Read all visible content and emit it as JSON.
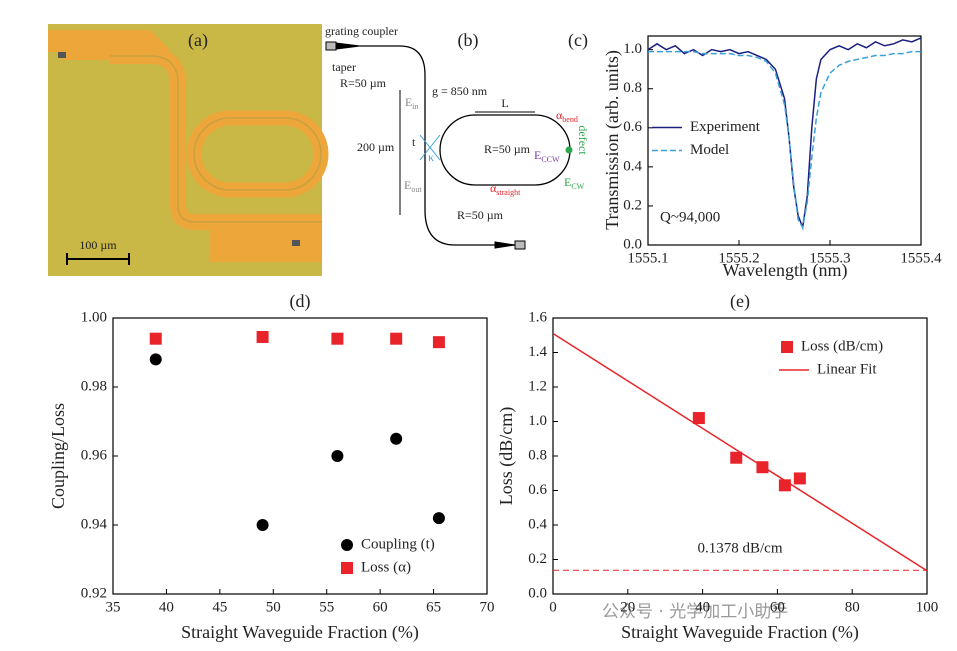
{
  "chart_data": [
    {
      "type": "line",
      "panel_label": "(c)",
      "xlabel": "Wavelength (nm)",
      "ylabel": "Transmission (arb. units)",
      "x": [
        1555.1,
        1555.11,
        1555.12,
        1555.13,
        1555.14,
        1555.15,
        1555.16,
        1555.17,
        1555.18,
        1555.19,
        1555.2,
        1555.21,
        1555.22,
        1555.23,
        1555.24,
        1555.25,
        1555.255,
        1555.26,
        1555.265,
        1555.27,
        1555.275,
        1555.28,
        1555.285,
        1555.29,
        1555.3,
        1555.31,
        1555.32,
        1555.33,
        1555.34,
        1555.35,
        1555.36,
        1555.37,
        1555.38,
        1555.39,
        1555.4
      ],
      "series": [
        {
          "name": "Experiment",
          "color": "#1a1f80",
          "marker": "none",
          "dash": false,
          "values": [
            1.0,
            1.03,
            1.0,
            1.02,
            0.98,
            1.0,
            0.97,
            1.0,
            0.99,
            1.0,
            0.98,
            0.99,
            0.97,
            0.95,
            0.9,
            0.75,
            0.55,
            0.3,
            0.15,
            0.09,
            0.25,
            0.6,
            0.85,
            0.95,
            1.0,
            1.02,
            1.0,
            1.03,
            1.01,
            1.04,
            1.02,
            1.03,
            1.05,
            1.04,
            1.06
          ]
        },
        {
          "name": "Model",
          "color": "#3aa0d8",
          "marker": "none",
          "dash": true,
          "values": [
            0.99,
            0.99,
            0.99,
            0.99,
            0.99,
            0.99,
            0.98,
            0.98,
            0.98,
            0.98,
            0.97,
            0.97,
            0.96,
            0.94,
            0.88,
            0.72,
            0.55,
            0.32,
            0.13,
            0.09,
            0.22,
            0.45,
            0.65,
            0.78,
            0.88,
            0.92,
            0.94,
            0.95,
            0.96,
            0.97,
            0.97,
            0.98,
            0.98,
            0.99,
            0.99
          ]
        }
      ],
      "xlim": [
        1555.1,
        1555.4
      ],
      "xticks": [
        1555.1,
        1555.2,
        1555.3,
        1555.4
      ],
      "ylim": [
        0,
        1.07
      ],
      "yticks": [
        {
          "value": 0,
          "label": "0.0"
        },
        0.2,
        0.4,
        0.6,
        0.8,
        {
          "value": 1,
          "label": "1.0"
        }
      ],
      "legend": "center-left",
      "annotation": "Q~94,000"
    },
    {
      "type": "scatter",
      "panel_label": "(d)",
      "xlabel": "Straight Waveguide Fraction (%)",
      "ylabel": "Coupling/Loss",
      "series": [
        {
          "name": "Coupling (t)",
          "color": "#000000",
          "marker": "circle",
          "x": [
            39,
            49,
            56,
            61.5,
            65.5
          ],
          "values": [
            0.988,
            0.94,
            0.96,
            0.965,
            0.942
          ]
        },
        {
          "name": "Loss (α)",
          "color": "#e8242a",
          "marker": "square",
          "x": [
            39,
            49,
            56,
            61.5,
            65.5
          ],
          "values": [
            0.994,
            0.9945,
            0.994,
            0.994,
            0.993
          ]
        }
      ],
      "xlim": [
        35,
        70
      ],
      "xticks": [
        35,
        40,
        45,
        50,
        55,
        60,
        65,
        70
      ],
      "ylim": [
        0.92,
        1.0
      ],
      "yticks": [
        0.92,
        0.94,
        0.96,
        0.98,
        {
          "value": 1,
          "label": "1.00"
        }
      ],
      "legend": "lower-right"
    },
    {
      "type": "scatter",
      "panel_label": "(e)",
      "xlabel": "Straight Waveguide Fraction (%)",
      "ylabel": "Loss (dB/cm)",
      "series": [
        {
          "name": "Loss (dB/cm)",
          "color": "#e8242a",
          "marker": "square",
          "x": [
            39,
            49,
            56,
            62,
            66
          ],
          "values": [
            1.02,
            0.79,
            0.735,
            0.63,
            0.67
          ]
        },
        {
          "name": "Linear Fit",
          "color": "#e8242a",
          "marker": "none",
          "dash": false,
          "x": [
            0,
            100
          ],
          "values": [
            1.51,
            0.135
          ]
        }
      ],
      "xlim": [
        0,
        100
      ],
      "xticks": [
        0,
        20,
        40,
        60,
        80,
        100
      ],
      "ylim": [
        0,
        1.6
      ],
      "yticks": [
        {
          "value": 0,
          "label": "0.0"
        },
        0.2,
        0.4,
        0.6,
        0.8,
        {
          "value": 1,
          "label": "1.0"
        },
        {
          "value": 1.2,
          "label": "1.2"
        },
        1.4,
        1.6
      ],
      "legend": "upper-right",
      "reference_line": 0.1378,
      "annotation": "0.1378 dB/cm"
    }
  ],
  "micrograph": {
    "panel_label": "(a)",
    "scale_bar": "100 µm"
  },
  "schematic": {
    "panel_label": "(b)",
    "labels": [
      {
        "text": "grating coupler"
      },
      {
        "text": "taper"
      },
      {
        "text": "R=50 µm"
      },
      {
        "text": "g = 850 nm"
      },
      {
        "text": "L"
      },
      {
        "text": "α",
        "sub": "bend"
      },
      {
        "text": "defect"
      },
      {
        "text": "E",
        "sub": "in"
      },
      {
        "text": "t"
      },
      {
        "text": "κ"
      },
      {
        "text": "200 µm"
      },
      {
        "text": "R=50 µm"
      },
      {
        "text": "E",
        "sub": "CCW"
      },
      {
        "text": "E",
        "sub": "out"
      },
      {
        "text": "α",
        "sub": "straight"
      },
      {
        "text": "E",
        "sub": "CW"
      },
      {
        "text": "R=50 µm"
      }
    ]
  },
  "watermark": "公众号 · 光学加工小助手"
}
